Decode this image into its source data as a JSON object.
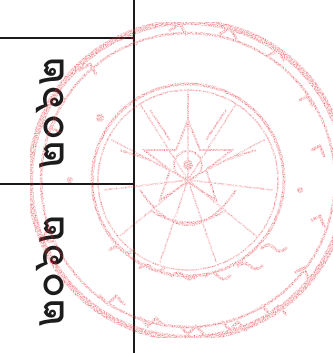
{
  "document": {
    "year_top": "๒๐๖๒",
    "year_bottom": "๒๐๖๒"
  },
  "seal": {
    "ink_color": "#e8323c",
    "icon": "official-seal-stamp"
  }
}
